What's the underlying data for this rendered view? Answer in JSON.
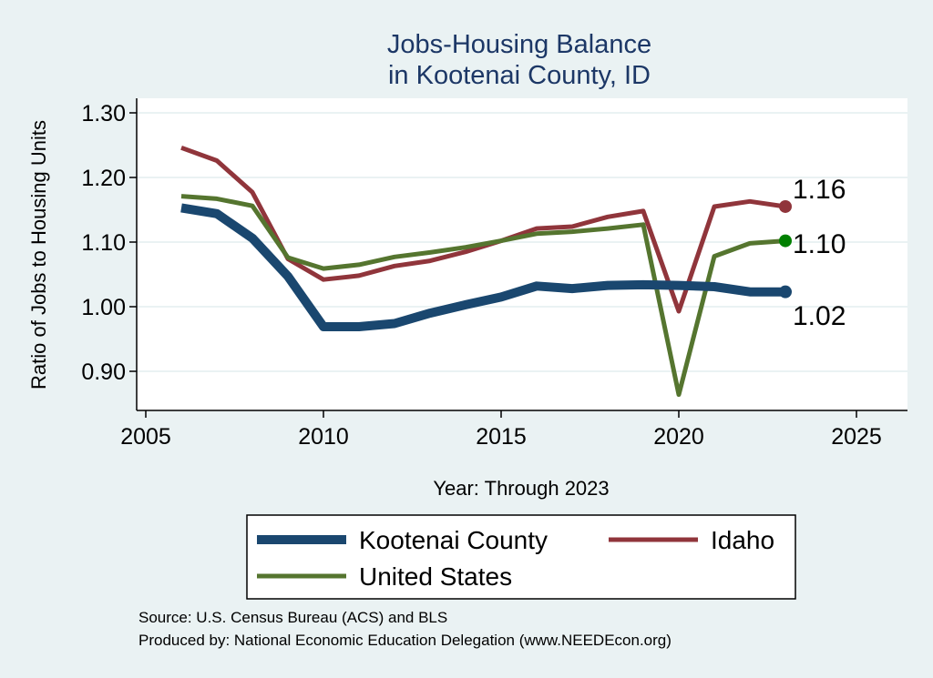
{
  "chart_data": {
    "type": "line",
    "title": [
      "Jobs-Housing Balance",
      "in Kootenai County, ID"
    ],
    "xlabel": "Year: Through 2023",
    "ylabel": "Ratio of Jobs to Housing Units",
    "xlim": [
      2005,
      2025
    ],
    "ylim": [
      0.83,
      1.32
    ],
    "xticks": [
      2005,
      2010,
      2015,
      2020,
      2025
    ],
    "xtick_labels": [
      "2005",
      "2010",
      "2015",
      "2020",
      "2025"
    ],
    "yticks": [
      0.9,
      1.0,
      1.1,
      1.2,
      1.3
    ],
    "ytick_labels": [
      "0.90",
      "1.00",
      "1.10",
      "1.20",
      "1.30"
    ],
    "grid": "horizontal",
    "legend_position": "bottom",
    "x": [
      2006,
      2007,
      2008,
      2009,
      2010,
      2011,
      2012,
      2013,
      2014,
      2015,
      2016,
      2017,
      2018,
      2019,
      2020,
      2021,
      2022,
      2023
    ],
    "series": [
      {
        "name": "Kootenai County",
        "color": "#1a476f",
        "values": [
          1.153,
          1.144,
          1.106,
          1.047,
          0.969,
          0.969,
          0.974,
          0.99,
          1.003,
          1.015,
          1.032,
          1.028,
          1.033,
          1.034,
          1.033,
          1.031,
          1.023,
          1.023
        ],
        "end_label": "1.02"
      },
      {
        "name": "Idaho",
        "color": "#90353b",
        "values": [
          1.246,
          1.226,
          1.177,
          1.074,
          1.042,
          1.048,
          1.063,
          1.071,
          1.085,
          1.102,
          1.121,
          1.124,
          1.139,
          1.148,
          0.993,
          1.155,
          1.163,
          1.155
        ],
        "end_label": "1.16"
      },
      {
        "name": "United States",
        "color": "#55752f",
        "values": [
          1.171,
          1.167,
          1.156,
          1.076,
          1.059,
          1.065,
          1.077,
          1.084,
          1.092,
          1.102,
          1.113,
          1.116,
          1.121,
          1.127,
          0.864,
          1.078,
          1.098,
          1.102
        ],
        "end_label": "1.10"
      }
    ]
  },
  "legend": {
    "items": [
      "Kootenai County",
      "Idaho",
      "United States"
    ]
  },
  "source": {
    "line1": "Source: U.S. Census Bureau (ACS) and BLS",
    "line2": "Produced by: National Economic Education Delegation (www.NEEDEcon.org)"
  },
  "colors": {
    "background": "#eaf2f3",
    "plot_background": "#ffffff",
    "kootenai": "#1a476f",
    "idaho": "#90353b",
    "united_states": "#55752f",
    "end_marker_us": "#008000"
  }
}
